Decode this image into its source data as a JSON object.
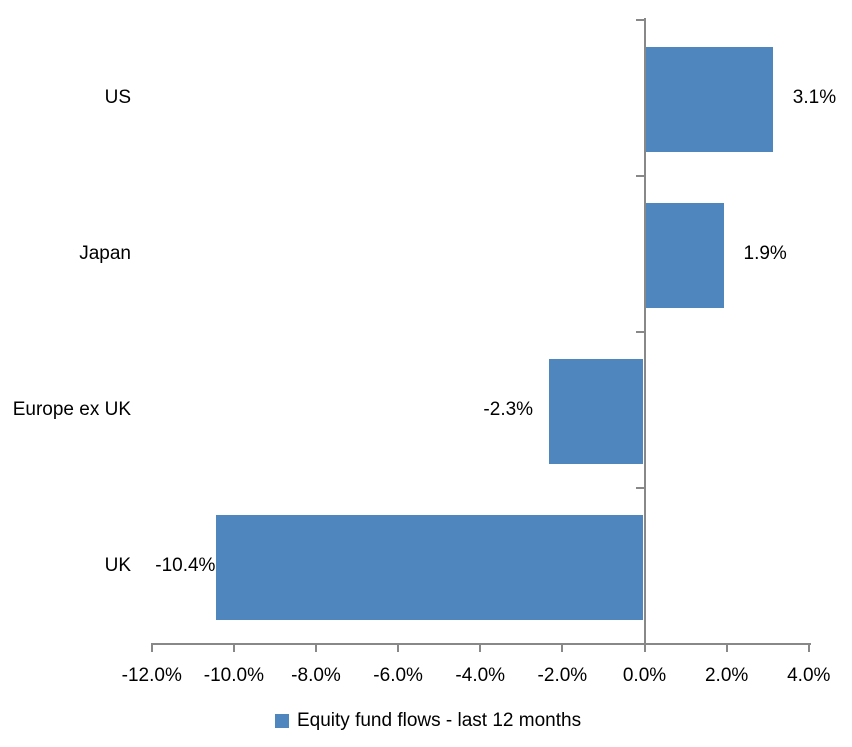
{
  "chart_data": {
    "type": "bar",
    "orientation": "horizontal",
    "title": "",
    "categories": [
      "US",
      "Japan",
      "Europe ex UK",
      "UK"
    ],
    "values": [
      3.1,
      1.9,
      -2.3,
      -10.4
    ],
    "value_labels": [
      "3.1%",
      "1.9%",
      "-2.3%",
      "-10.4%"
    ],
    "x_tick_values": [
      -12,
      -10,
      -8,
      -6,
      -4,
      -2,
      0,
      2,
      4
    ],
    "x_tick_labels": [
      "-12.0%",
      "-10.0%",
      "-8.0%",
      "-6.0%",
      "-4.0%",
      "-2.0%",
      "0.0%",
      "2.0%",
      "4.0%"
    ],
    "xlim": [
      -12,
      4
    ],
    "grid": false,
    "legend_position": "bottom",
    "legend": [
      {
        "label": "Equity fund flows - last 12 months",
        "color": "#4e86bd"
      }
    ],
    "bar_color": "#4e86bd",
    "axis_color": "#888888",
    "text_color": "#000000"
  }
}
